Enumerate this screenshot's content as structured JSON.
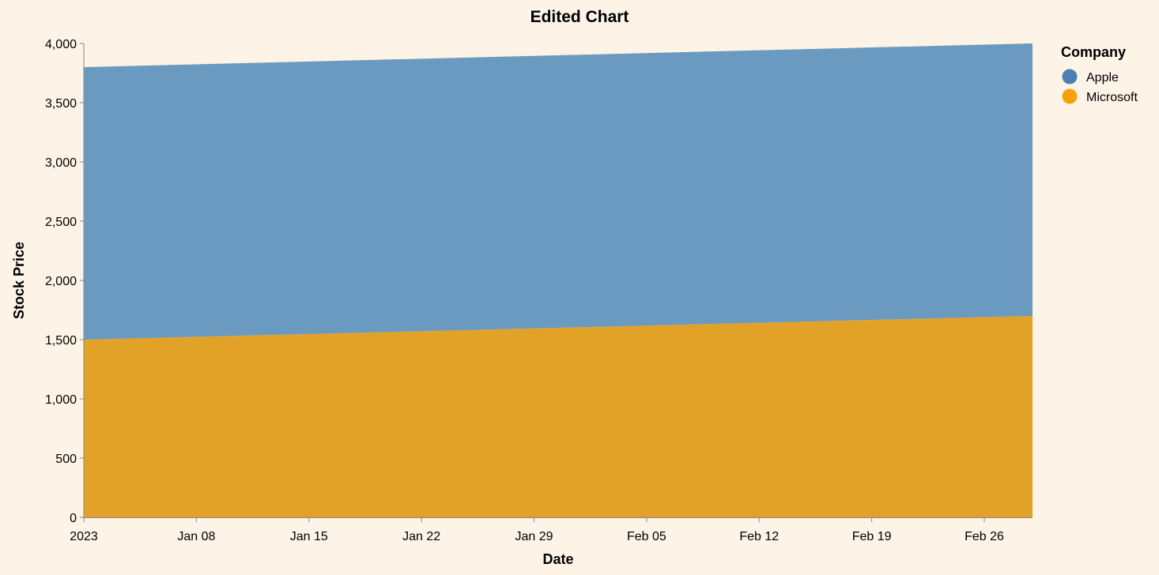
{
  "chart_data": {
    "type": "area",
    "stacked": true,
    "title": "Edited Chart",
    "xlabel": "Date",
    "ylabel": "Stock Price",
    "ylim": [
      0,
      4000
    ],
    "xlim": [
      "2023-01-01",
      "2023-03-01"
    ],
    "y_ticks": [
      {
        "value": 0,
        "label": "0"
      },
      {
        "value": 500,
        "label": "500"
      },
      {
        "value": 1000,
        "label": "1,000"
      },
      {
        "value": 1500,
        "label": "1,500"
      },
      {
        "value": 2000,
        "label": "2,000"
      },
      {
        "value": 2500,
        "label": "2,500"
      },
      {
        "value": 3000,
        "label": "3,000"
      },
      {
        "value": 3500,
        "label": "3,500"
      },
      {
        "value": 4000,
        "label": "4,000"
      }
    ],
    "x_ticks": [
      {
        "date": "2023-01-01",
        "label": "2023"
      },
      {
        "date": "2023-01-08",
        "label": "Jan 08"
      },
      {
        "date": "2023-01-15",
        "label": "Jan 15"
      },
      {
        "date": "2023-01-22",
        "label": "Jan 22"
      },
      {
        "date": "2023-01-29",
        "label": "Jan 29"
      },
      {
        "date": "2023-02-05",
        "label": "Feb 05"
      },
      {
        "date": "2023-02-12",
        "label": "Feb 12"
      },
      {
        "date": "2023-02-19",
        "label": "Feb 19"
      },
      {
        "date": "2023-02-26",
        "label": "Feb 26"
      }
    ],
    "x": [
      "2023-01-01",
      "2023-03-01"
    ],
    "series": [
      {
        "name": "Microsoft",
        "color": "#e2a228",
        "values": [
          1500,
          1700
        ]
      },
      {
        "name": "Apple",
        "color": "#6a9abf",
        "values": [
          2300,
          2300
        ]
      }
    ],
    "legend": {
      "title": "Company",
      "position": "top-right",
      "entries": [
        {
          "label": "Apple",
          "color": "#4c7fb3"
        },
        {
          "label": "Microsoft",
          "color": "#f5a308"
        }
      ]
    },
    "grid": false
  }
}
